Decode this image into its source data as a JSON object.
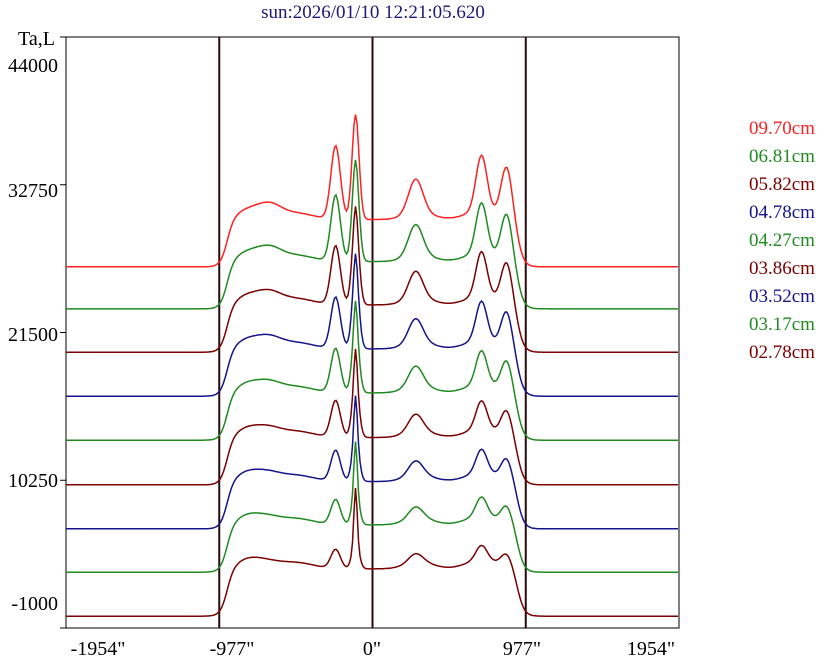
{
  "chart_data": {
    "type": "line",
    "title": "sun:2026/01/10 12:21:05.620",
    "ylabel": "Ta,L",
    "x_ticks": [
      "-1954\"",
      "-977\"",
      "0\"",
      "977\"",
      "1954\""
    ],
    "y_ticks": [
      "44000",
      "32750",
      "21500",
      "10250",
      "-1000"
    ],
    "xlim": [
      -1954,
      1954
    ],
    "ylim": [
      -1000,
      44000
    ],
    "grid": false,
    "vertical_markers": [
      -977,
      0,
      977
    ],
    "legend_position": "right",
    "series": [
      {
        "name": "09.70cm",
        "color": "#ff2020",
        "offset": 26500,
        "peak_scale": 1.0
      },
      {
        "name": "06.81cm",
        "color": "#1f8a1f",
        "offset": 23300,
        "peak_scale": 0.9
      },
      {
        "name": "05.82cm",
        "color": "#7a0000",
        "offset": 20000,
        "peak_scale": 0.8
      },
      {
        "name": "04.78cm",
        "color": "#14148a",
        "offset": 16650,
        "peak_scale": 0.7
      },
      {
        "name": "04.27cm",
        "color": "#1f8a1f",
        "offset": 13300,
        "peak_scale": 0.6
      },
      {
        "name": "03.86cm",
        "color": "#7a0000",
        "offset": 9900,
        "peak_scale": 0.5
      },
      {
        "name": "03.52cm",
        "color": "#14148a",
        "offset": 6550,
        "peak_scale": 0.42
      },
      {
        "name": "03.17cm",
        "color": "#1f8a1f",
        "offset": 3250,
        "peak_scale": 0.34
      },
      {
        "name": "02.78cm",
        "color": "#7a0000",
        "offset": -100,
        "peak_scale": 0.26
      }
    ]
  }
}
